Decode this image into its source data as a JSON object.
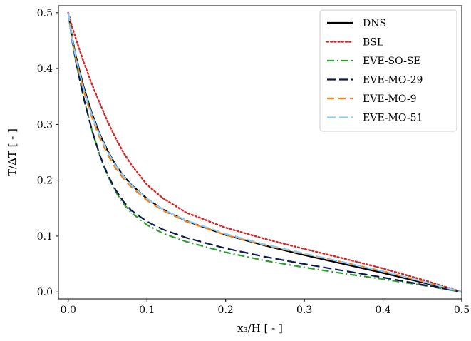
{
  "chart_data": {
    "type": "line",
    "title": "",
    "xlabel": "x₃/H [ - ]",
    "ylabel": "T̅/ΔT [ - ]",
    "xlim": [
      -0.0125,
      0.5
    ],
    "ylim": [
      -0.0125,
      0.5125
    ],
    "xticks": [
      "0.0",
      "0.1",
      "0.2",
      "0.3",
      "0.4",
      "0.5"
    ],
    "yticks": [
      "0.0",
      "0.1",
      "0.2",
      "0.3",
      "0.4",
      "0.5"
    ],
    "grid": false,
    "legend_position": "top-right",
    "series": [
      {
        "name": "DNS",
        "color": "#000000",
        "style": "solid",
        "x": [
          0.0,
          0.005,
          0.01,
          0.02,
          0.03,
          0.04,
          0.05,
          0.06,
          0.07,
          0.08,
          0.1,
          0.12,
          0.15,
          0.2,
          0.25,
          0.3,
          0.35,
          0.4,
          0.45,
          0.5
        ],
        "y": [
          0.5,
          0.455,
          0.42,
          0.365,
          0.32,
          0.283,
          0.253,
          0.228,
          0.208,
          0.192,
          0.167,
          0.148,
          0.127,
          0.102,
          0.083,
          0.066,
          0.05,
          0.034,
          0.017,
          0.0
        ]
      },
      {
        "name": "BSL",
        "color": "#d62728",
        "style": "dotted",
        "x": [
          0.0,
          0.005,
          0.01,
          0.02,
          0.03,
          0.04,
          0.05,
          0.06,
          0.07,
          0.08,
          0.1,
          0.12,
          0.15,
          0.2,
          0.25,
          0.3,
          0.35,
          0.4,
          0.45,
          0.5
        ],
        "y": [
          0.5,
          0.474,
          0.452,
          0.41,
          0.372,
          0.338,
          0.305,
          0.276,
          0.25,
          0.228,
          0.192,
          0.168,
          0.142,
          0.115,
          0.095,
          0.077,
          0.06,
          0.042,
          0.022,
          0.0
        ]
      },
      {
        "name": "EVE-SO-SE",
        "color": "#2ca02c",
        "style": "dashdot",
        "x": [
          0.0,
          0.005,
          0.01,
          0.02,
          0.03,
          0.04,
          0.05,
          0.06,
          0.07,
          0.08,
          0.1,
          0.12,
          0.15,
          0.2,
          0.25,
          0.3,
          0.35,
          0.4,
          0.45,
          0.5
        ],
        "y": [
          0.5,
          0.45,
          0.41,
          0.345,
          0.29,
          0.245,
          0.208,
          0.18,
          0.158,
          0.142,
          0.12,
          0.105,
          0.09,
          0.071,
          0.056,
          0.044,
          0.033,
          0.023,
          0.012,
          0.0
        ]
      },
      {
        "name": "EVE-MO-29",
        "color": "#0b1a4a",
        "style": "longdash",
        "x": [
          0.0,
          0.005,
          0.01,
          0.02,
          0.03,
          0.04,
          0.05,
          0.06,
          0.07,
          0.08,
          0.1,
          0.12,
          0.15,
          0.2,
          0.25,
          0.3,
          0.35,
          0.4,
          0.45,
          0.5
        ],
        "y": [
          0.5,
          0.45,
          0.41,
          0.345,
          0.29,
          0.245,
          0.21,
          0.183,
          0.162,
          0.146,
          0.126,
          0.112,
          0.097,
          0.078,
          0.063,
          0.05,
          0.038,
          0.026,
          0.013,
          0.0
        ]
      },
      {
        "name": "EVE-MO-9",
        "color": "#ff7f0e",
        "style": "dashed",
        "x": [
          0.0,
          0.005,
          0.01,
          0.02,
          0.03,
          0.04,
          0.05,
          0.06,
          0.07,
          0.08,
          0.1,
          0.12,
          0.15,
          0.2,
          0.25,
          0.3,
          0.35,
          0.4,
          0.45,
          0.5
        ],
        "y": [
          0.5,
          0.452,
          0.415,
          0.358,
          0.313,
          0.276,
          0.246,
          0.222,
          0.203,
          0.188,
          0.164,
          0.146,
          0.126,
          0.102,
          0.084,
          0.068,
          0.053,
          0.037,
          0.019,
          0.0
        ]
      },
      {
        "name": "EVE-MO-51",
        "color": "#87cefa",
        "style": "longdash",
        "x": [
          0.0,
          0.005,
          0.01,
          0.02,
          0.03,
          0.04,
          0.05,
          0.06,
          0.07,
          0.08,
          0.1,
          0.12,
          0.15,
          0.2,
          0.25,
          0.3,
          0.35,
          0.4,
          0.45,
          0.5
        ],
        "y": [
          0.5,
          0.453,
          0.417,
          0.361,
          0.317,
          0.281,
          0.251,
          0.227,
          0.207,
          0.191,
          0.167,
          0.148,
          0.128,
          0.104,
          0.085,
          0.069,
          0.053,
          0.037,
          0.019,
          0.0
        ]
      }
    ]
  }
}
